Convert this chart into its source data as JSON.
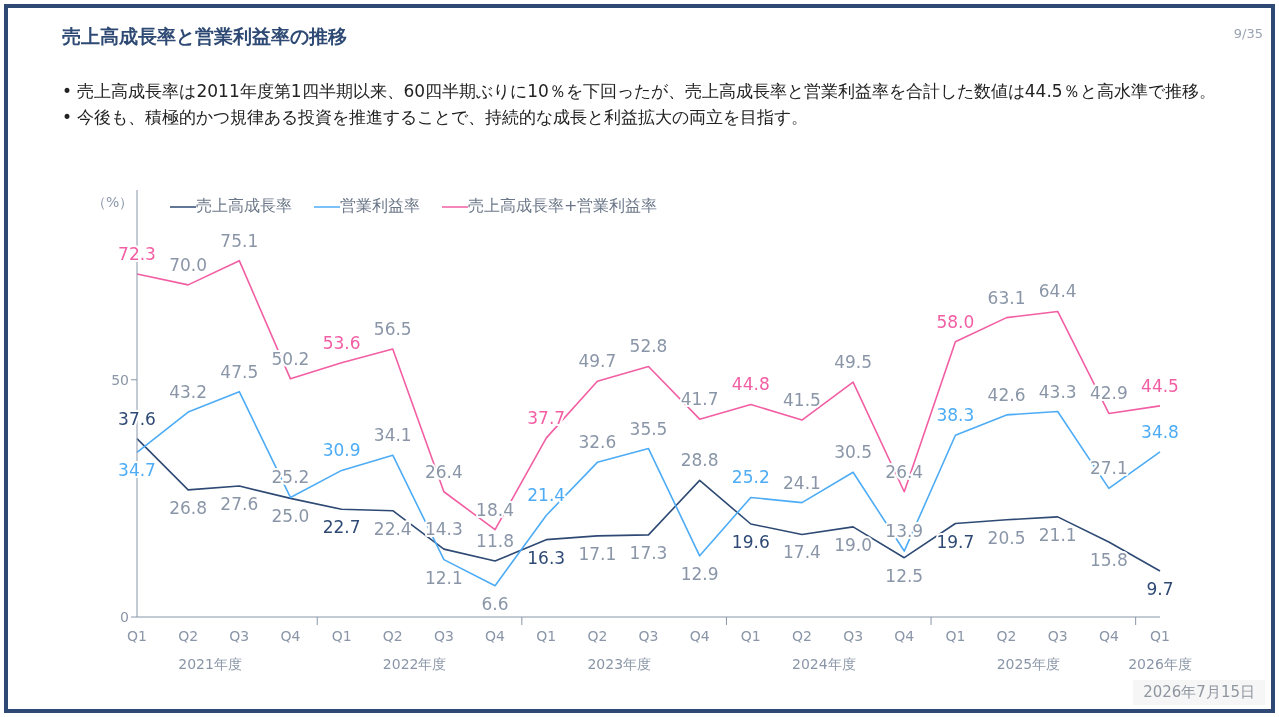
{
  "chart_data": {
    "type": "line",
    "title": "売上高成長率と営業利益率の推移",
    "ylabel": "（%）",
    "categories": [
      "Q1",
      "Q2",
      "Q3",
      "Q4",
      "Q1",
      "Q2",
      "Q3",
      "Q4",
      "Q1",
      "Q2",
      "Q3",
      "Q4",
      "Q1",
      "Q2",
      "Q3",
      "Q4",
      "Q1",
      "Q2",
      "Q3",
      "Q4",
      "Q1"
    ],
    "series": [
      {
        "name": "売上高成長率",
        "color": "#2e4a74",
        "values": [
          37.6,
          26.8,
          27.6,
          25.0,
          22.7,
          22.4,
          14.3,
          11.8,
          16.3,
          17.1,
          17.3,
          28.8,
          19.6,
          17.4,
          19.0,
          12.5,
          19.7,
          20.5,
          21.1,
          15.8,
          9.7
        ],
        "value_labels": [
          "37.6",
          "26.8",
          "27.6",
          "25.0",
          "22.7",
          "22.4",
          "14.3",
          "11.8",
          "16.3",
          "17.1",
          "17.3",
          "28.8",
          "19.6",
          "17.4",
          "19.0",
          "12.5",
          "19.7",
          "20.5",
          "21.1",
          "15.8",
          "9.7"
        ]
      },
      {
        "name": "営業利益率",
        "color": "#4dacf5",
        "values": [
          34.7,
          43.2,
          47.5,
          25.2,
          30.9,
          34.1,
          12.1,
          6.6,
          21.4,
          32.6,
          35.5,
          12.9,
          25.2,
          24.1,
          30.5,
          13.9,
          38.3,
          42.6,
          43.3,
          27.1,
          34.8
        ],
        "value_labels": [
          "34.7",
          "43.2",
          "47.5",
          "25.2",
          "30.9",
          "34.1",
          "12.1",
          "6.6",
          "21.4",
          "32.6",
          "35.5",
          "12.9",
          "25.2",
          "24.1",
          "30.5",
          "13.9",
          "38.3",
          "42.6",
          "43.3",
          "27.1",
          "34.8"
        ]
      },
      {
        "name": "売上高成長率+営業利益率",
        "color": "#f25ea3",
        "values": [
          72.3,
          70.0,
          75.1,
          50.2,
          53.6,
          56.5,
          26.4,
          18.4,
          37.7,
          49.7,
          52.8,
          41.7,
          44.8,
          41.5,
          49.5,
          26.4,
          58.0,
          63.1,
          64.4,
          42.9,
          44.5
        ],
        "value_labels": [
          "72.3",
          "70.0",
          "75.1",
          "50.2",
          "53.6",
          "56.5",
          "26.4",
          "18.4",
          "37.7",
          "49.7",
          "52.8",
          "41.7",
          "44.8",
          "41.5",
          "49.5",
          "26.4",
          "58.0",
          "63.1",
          "64.4",
          "42.9",
          "44.5"
        ]
      }
    ],
    "ylim": [
      0,
      90
    ],
    "yticks": [
      0,
      50
    ],
    "legend": "top left",
    "annotations": [
      "• 売上高成長率は2011年度第1四半期以来、60四半期ぶりに10％を下回ったが、売上高成長率と営業利益率を合計した数値は44.5％と高水準で推移。",
      "• 今後も、積極的かつ規律ある投資を推進することで、持続的な成長と利益拡大の両立を目指す。",
      "2021年度",
      "2022年度",
      "2023年度",
      "2024年度",
      "2025年度",
      "2026年度",
      "9/35",
      "2026年7月15日"
    ]
  }
}
